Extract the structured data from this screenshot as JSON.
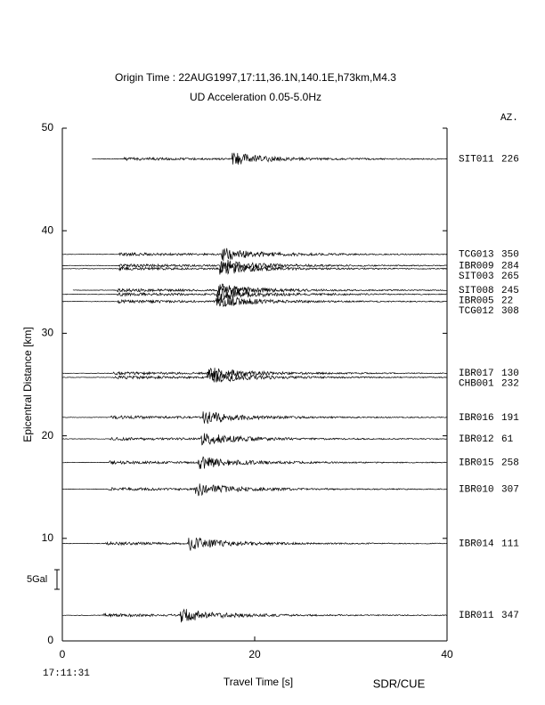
{
  "chart_data": {
    "type": "record-section",
    "title": "Origin Time : 22AUG1997,17:11,36.1N,140.1E,h73km,M4.3",
    "subtitle": "UD Acceleration 0.05-5.0Hz",
    "azimuth_header": "AZ.",
    "xlabel": "Travel Time [s]",
    "ylabel": "Epicentral Distance [km]",
    "origin_clock": "17:11:31",
    "scale_label": "5Gal",
    "credit": "SDR/CUE",
    "xlim": [
      0,
      40
    ],
    "xticks": [
      0,
      20,
      40
    ],
    "ylim": [
      0,
      50
    ],
    "yticks": [
      0,
      10,
      20,
      30,
      40,
      50
    ],
    "traces": [
      {
        "name": "SIT011",
        "azimuth": 226,
        "distance": 47.0,
        "start": 3.1
      },
      {
        "name": "TCG013",
        "azimuth": 350,
        "distance": 37.7,
        "start": 0
      },
      {
        "name": "IBR009",
        "azimuth": 284,
        "distance": 36.6,
        "start": 0
      },
      {
        "name": "SIT003",
        "azimuth": 265,
        "distance": 36.3,
        "start": 0
      },
      {
        "name": "SIT008",
        "azimuth": 245,
        "distance": 34.2,
        "start": 1.1
      },
      {
        "name": "IBR005",
        "azimuth": 22,
        "distance": 33.8,
        "start": 0
      },
      {
        "name": "TCG012",
        "azimuth": 308,
        "distance": 33.1,
        "start": 0
      },
      {
        "name": "IBR017",
        "azimuth": 130,
        "distance": 26.1,
        "start": 0
      },
      {
        "name": "CHB001",
        "azimuth": 232,
        "distance": 25.7,
        "start": 0
      },
      {
        "name": "IBR016",
        "azimuth": 191,
        "distance": 21.8,
        "start": 0
      },
      {
        "name": "IBR012",
        "azimuth": 61,
        "distance": 19.7,
        "start": 0
      },
      {
        "name": "IBR015",
        "azimuth": 258,
        "distance": 17.4,
        "start": 0
      },
      {
        "name": "IBR010",
        "azimuth": 307,
        "distance": 14.8,
        "start": 0
      },
      {
        "name": "IBR014",
        "azimuth": 111,
        "distance": 9.5,
        "start": 0
      },
      {
        "name": "IBR011",
        "azimuth": 347,
        "distance": 2.5,
        "start": 0
      }
    ]
  }
}
